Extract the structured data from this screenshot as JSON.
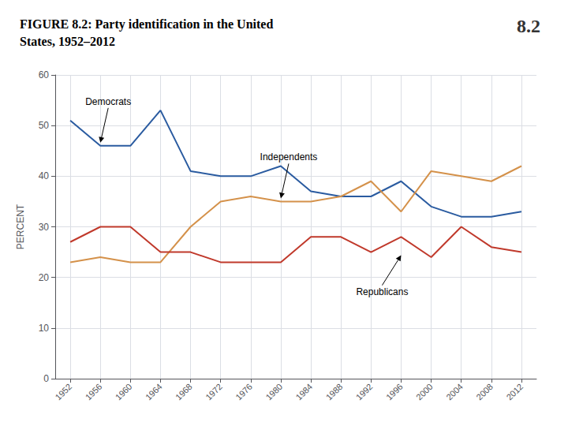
{
  "chart_data": {
    "type": "line",
    "title": "FIGURE 8.2: Party identification in the United\nStates, 1952–2012",
    "subtitle": "8.2",
    "ylabel": "PERCENT",
    "x": [
      1952,
      1956,
      1960,
      1964,
      1968,
      1972,
      1976,
      1980,
      1984,
      1988,
      1992,
      1996,
      2000,
      2004,
      2008,
      2012
    ],
    "series": [
      {
        "name": "Democrats",
        "color": "#2A5BA0",
        "values": [
          51,
          46,
          46,
          53,
          41,
          40,
          40,
          42,
          37,
          36,
          36,
          39,
          34,
          32,
          32,
          33
        ]
      },
      {
        "name": "Independents",
        "color": "#D4914A",
        "values": [
          23,
          24,
          23,
          23,
          30,
          35,
          36,
          35,
          35,
          36,
          39,
          33,
          41,
          40,
          39,
          42
        ]
      },
      {
        "name": "Republicans",
        "color": "#C0392B",
        "values": [
          27,
          30,
          30,
          25,
          25,
          23,
          23,
          23,
          28,
          28,
          25,
          28,
          24,
          30,
          26,
          25
        ]
      }
    ],
    "xlim": [
      1950,
      2014
    ],
    "xticks": [
      1952,
      1956,
      1960,
      1964,
      1968,
      1972,
      1976,
      1980,
      1984,
      1988,
      1992,
      1996,
      2000,
      2004,
      2008,
      2012
    ],
    "ylim": [
      0,
      60
    ],
    "yticks": [
      0,
      10,
      20,
      30,
      40,
      50,
      60
    ],
    "grid": true,
    "annotations": [
      {
        "text": "Democrats",
        "x": 1956,
        "y": 46
      },
      {
        "text": "Independents",
        "x": 1980,
        "y": 35
      },
      {
        "text": "Republicans",
        "x": 1996,
        "y": 25
      }
    ]
  }
}
